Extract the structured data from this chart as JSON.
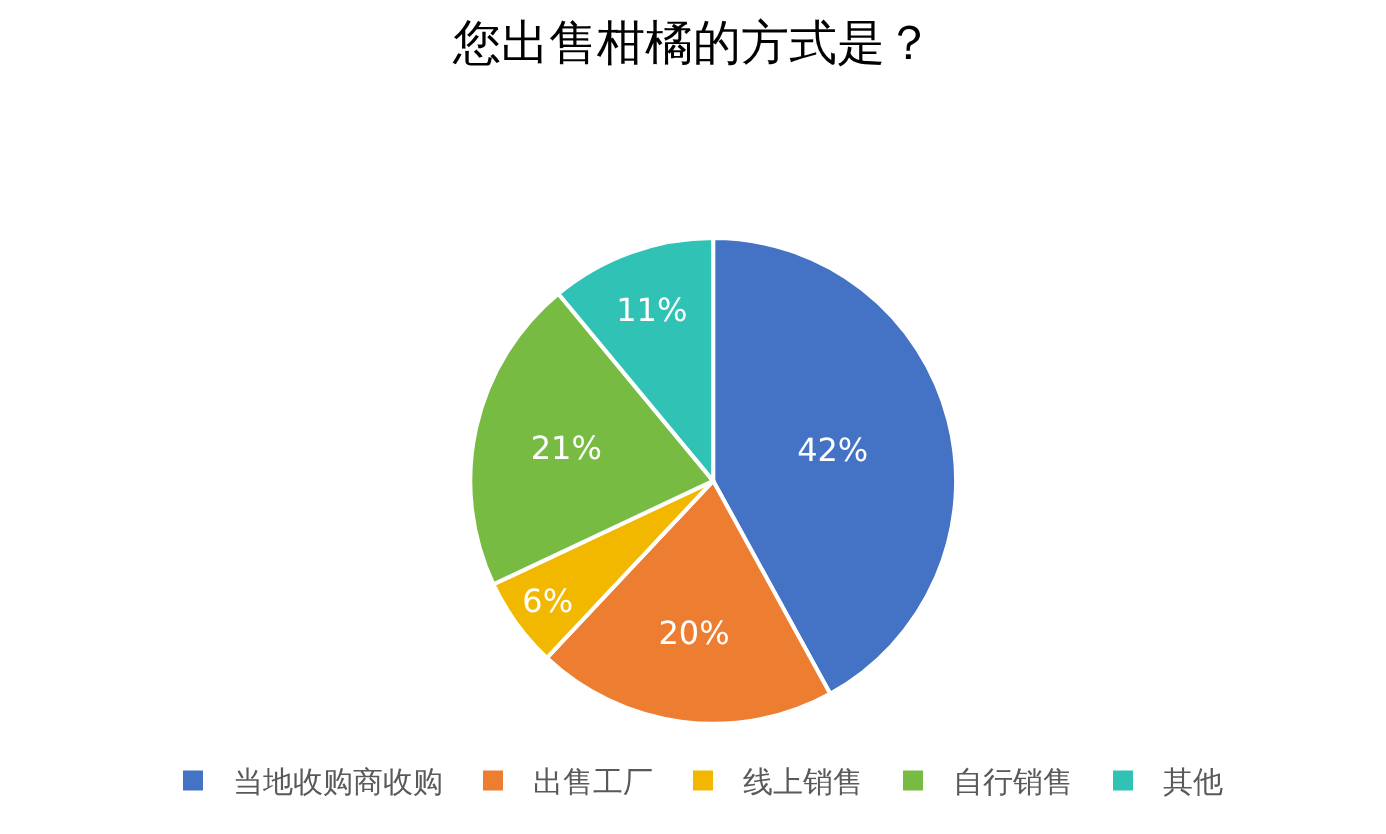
{
  "chart_data": {
    "type": "pie",
    "title": "您出售柑橘的方式是？",
    "categories": [
      "当地收购商收购",
      "出售工厂",
      "线上销售",
      "自行销售",
      "其他"
    ],
    "values": [
      42,
      20,
      6,
      21,
      11
    ],
    "value_labels": [
      "42%",
      "20%",
      "6%",
      "21%",
      "11%"
    ],
    "colors": [
      "#4472c4",
      "#ed7d31",
      "#f2b800",
      "#78bb43",
      "#30c2b5"
    ],
    "legend": "bottom"
  }
}
